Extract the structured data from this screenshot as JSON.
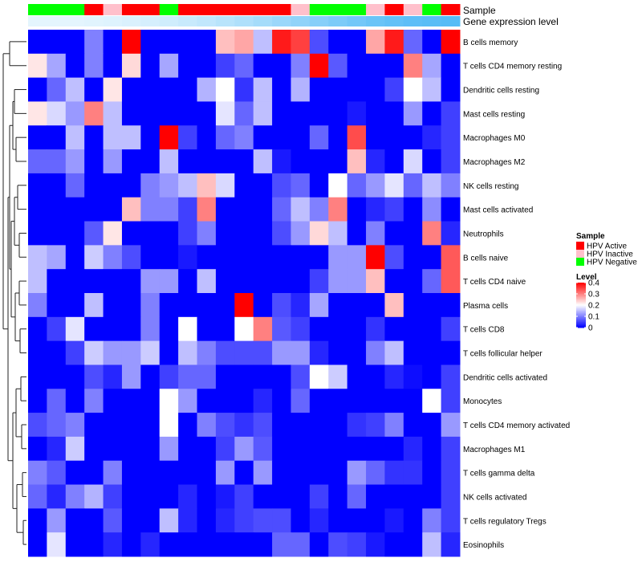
{
  "chart_data": {
    "type": "heatmap",
    "annotations": {
      "sample_label": "Sample",
      "expression_label": "Gene expression level"
    },
    "columns": 23,
    "sample_colors": {
      "active": "#ff0000",
      "inactive": "#ffc0cb",
      "negative": "#00ff00"
    },
    "sample_groups": [
      "negative",
      "negative",
      "negative",
      "active",
      "inactive",
      "active",
      "active",
      "negative",
      "active",
      "active",
      "active",
      "active",
      "active",
      "active",
      "inactive",
      "negative",
      "negative",
      "negative",
      "inactive",
      "active",
      "inactive",
      "negative",
      "active"
    ],
    "expression_colors": [
      "#e4f5fd",
      "#e4f5fd",
      "#e4f5fd",
      "#e1f4fd",
      "#def3fd",
      "#daf1fd",
      "#d5effd",
      "#cfedfc",
      "#c8eafc",
      "#c1e7fc",
      "#b8e4fb",
      "#afe0fb",
      "#a5dcfa",
      "#9bd7fa",
      "#90d3f9",
      "#86cff9",
      "#7ccbf8",
      "#73c7f8",
      "#6ac4f7",
      "#63c1f7",
      "#5dbef7",
      "#59bdf6",
      "#56bcf6"
    ],
    "rows": [
      "B cells memory",
      "T cells CD4 memory resting",
      "Dendritic cells resting",
      "Mast cells resting",
      "Macrophages M0",
      "Macrophages M2",
      "NK cells resting",
      "Mast cells activated",
      "Neutrophils",
      "B cells naive",
      "T cells CD4 naive",
      "Plasma cells",
      "T cells CD8",
      "T cells follicular helper",
      "Dendritic cells activated",
      "Monocytes",
      "T cells CD4 memory activated",
      "Macrophages M1",
      "T cells gamma delta",
      "NK cells activated",
      "T cells regulatory  Tregs",
      "Eosinophils"
    ],
    "values": [
      [
        0,
        0,
        0,
        0.1,
        0,
        0.4,
        0,
        0,
        0,
        0,
        0.25,
        0.27,
        0.15,
        0.38,
        0.35,
        0.06,
        0,
        0,
        0.27,
        0.38,
        0.08,
        0,
        0.4
      ],
      [
        0.22,
        0.13,
        0,
        0.1,
        0,
        0.23,
        0,
        0.13,
        0,
        0,
        0.05,
        0.08,
        0,
        0,
        0.1,
        0.4,
        0.07,
        0,
        0,
        0,
        0.3,
        0.13,
        0
      ],
      [
        0,
        0.08,
        0.15,
        0,
        0.22,
        0,
        0,
        0,
        0,
        0.14,
        0.2,
        0.04,
        0.15,
        0,
        0.14,
        0,
        0,
        0,
        0,
        0.05,
        0.2,
        0.15,
        0
      ],
      [
        0.22,
        0.17,
        0.12,
        0.3,
        0.15,
        0,
        0,
        0,
        0,
        0,
        0.18,
        0.08,
        0.15,
        0,
        0,
        0,
        0,
        0.02,
        0,
        0,
        0.12,
        0,
        0.05
      ],
      [
        0,
        0,
        0.15,
        0,
        0.15,
        0.15,
        0,
        0.4,
        0.05,
        0,
        0.08,
        0.1,
        0,
        0,
        0,
        0.08,
        0,
        0.34,
        0,
        0,
        0,
        0.03,
        0.05
      ],
      [
        0.08,
        0.08,
        0.12,
        0,
        0.12,
        0,
        0,
        0.15,
        0,
        0,
        0,
        0,
        0.15,
        0.02,
        0,
        0,
        0,
        0.25,
        0.03,
        0,
        0.17,
        0,
        0.05
      ],
      [
        0,
        0,
        0.08,
        0,
        0,
        0,
        0.1,
        0.12,
        0.15,
        0.25,
        0.17,
        0,
        0,
        0.06,
        0.08,
        0,
        0.2,
        0.08,
        0.12,
        0.18,
        0.08,
        0.15,
        0.1
      ],
      [
        0,
        0,
        0,
        0,
        0,
        0.25,
        0.1,
        0.1,
        0.05,
        0.3,
        0,
        0,
        0,
        0.08,
        0.15,
        0.1,
        0.3,
        0,
        0.03,
        0.05,
        0,
        0.11,
        0
      ],
      [
        0,
        0,
        0,
        0.07,
        0.22,
        0,
        0,
        0,
        0.05,
        0.1,
        0,
        0,
        0,
        0.06,
        0.12,
        0.23,
        0.15,
        0,
        0.1,
        0,
        0,
        0.3,
        0.03
      ],
      [
        0.15,
        0.13,
        0,
        0.16,
        0.1,
        0.06,
        0,
        0,
        0.02,
        0,
        0,
        0,
        0,
        0,
        0,
        0,
        0.12,
        0.12,
        0.4,
        0.06,
        0,
        0,
        0.33
      ],
      [
        0.15,
        0,
        0,
        0,
        0,
        0,
        0.12,
        0.12,
        0,
        0.15,
        0,
        0,
        0,
        0,
        0,
        0.05,
        0.12,
        0.12,
        0.25,
        0,
        0,
        0.08,
        0.33
      ],
      [
        0.1,
        0,
        0,
        0.15,
        0,
        0,
        0.1,
        0,
        0,
        0,
        0,
        0.4,
        0,
        0.06,
        0.03,
        0.13,
        0,
        0,
        0,
        0.25,
        0,
        0,
        0
      ],
      [
        0,
        0.05,
        0.18,
        0,
        0,
        0,
        0.1,
        0,
        0.2,
        0,
        0,
        0.2,
        0.3,
        0.07,
        0.05,
        0,
        0,
        0,
        0.04,
        0,
        0,
        0,
        0.05
      ],
      [
        0,
        0,
        0.05,
        0.16,
        0.12,
        0.12,
        0.16,
        0,
        0.15,
        0.1,
        0.06,
        0.06,
        0.06,
        0.12,
        0.12,
        0.03,
        0,
        0,
        0.1,
        0.15,
        0,
        0,
        0
      ],
      [
        0,
        0,
        0,
        0.06,
        0.03,
        0.12,
        0,
        0.05,
        0.08,
        0.08,
        0,
        0,
        0,
        0,
        0.06,
        0.2,
        0.16,
        0,
        0,
        0.03,
        0.01,
        0,
        0.05
      ],
      [
        0,
        0.08,
        0,
        0.1,
        0,
        0,
        0,
        0.2,
        0.12,
        0,
        0,
        0,
        0.03,
        0,
        0.08,
        0,
        0,
        0,
        0,
        0,
        0,
        0.2,
        0.05
      ],
      [
        0.06,
        0.08,
        0.1,
        0,
        0,
        0,
        0,
        0.2,
        0,
        0.1,
        0.06,
        0.04,
        0.06,
        0,
        0,
        0,
        0,
        0.04,
        0.05,
        0.1,
        0,
        0,
        0.12
      ],
      [
        0,
        0.03,
        0.16,
        0,
        0,
        0,
        0,
        0.12,
        0,
        0,
        0.05,
        0.12,
        0.07,
        0,
        0,
        0,
        0,
        0,
        0,
        0,
        0.03,
        0,
        0.05
      ],
      [
        0.1,
        0.07,
        0,
        0,
        0.1,
        0,
        0,
        0,
        0,
        0,
        0.12,
        0,
        0.12,
        0,
        0,
        0,
        0,
        0.12,
        0.08,
        0.04,
        0.04,
        0,
        0.05
      ],
      [
        0.08,
        0.03,
        0.1,
        0.14,
        0.05,
        0,
        0,
        0,
        0.03,
        0,
        0.02,
        0.05,
        0,
        0,
        0,
        0.05,
        0,
        0.08,
        0,
        0,
        0,
        0,
        0.05
      ],
      [
        0,
        0.12,
        0,
        0,
        0.07,
        0,
        0,
        0.15,
        0.03,
        0,
        0.03,
        0.05,
        0.06,
        0.06,
        0,
        0.03,
        0,
        0,
        0,
        0.02,
        0,
        0.1,
        0.05
      ],
      [
        0,
        0.18,
        0,
        0,
        0.03,
        0,
        0.03,
        0,
        0,
        0,
        0,
        0,
        0,
        0.08,
        0.08,
        0,
        0.06,
        0.05,
        0.02,
        0,
        0,
        0.15,
        0.03
      ]
    ],
    "legend": {
      "sample_title": "Sample",
      "sample_entries": [
        {
          "label": "HPV Active",
          "group": "active"
        },
        {
          "label": "HPV Inactive",
          "group": "inactive"
        },
        {
          "label": "HPV Negative",
          "group": "negative"
        }
      ],
      "level_title": "Level",
      "level_range": [
        0,
        0.4
      ],
      "level_ticks": [
        {
          "label": "0.4",
          "value": 0.4
        },
        {
          "label": "0.3",
          "value": 0.3
        },
        {
          "label": "0.2",
          "value": 0.2
        },
        {
          "label": "0.1",
          "value": 0.1
        },
        {
          "label": "0",
          "value": 0
        }
      ]
    },
    "color_scale": {
      "low": "#0000ff",
      "mid": "#ffffff",
      "high": "#ff0000",
      "mid_value": 0.2
    }
  }
}
